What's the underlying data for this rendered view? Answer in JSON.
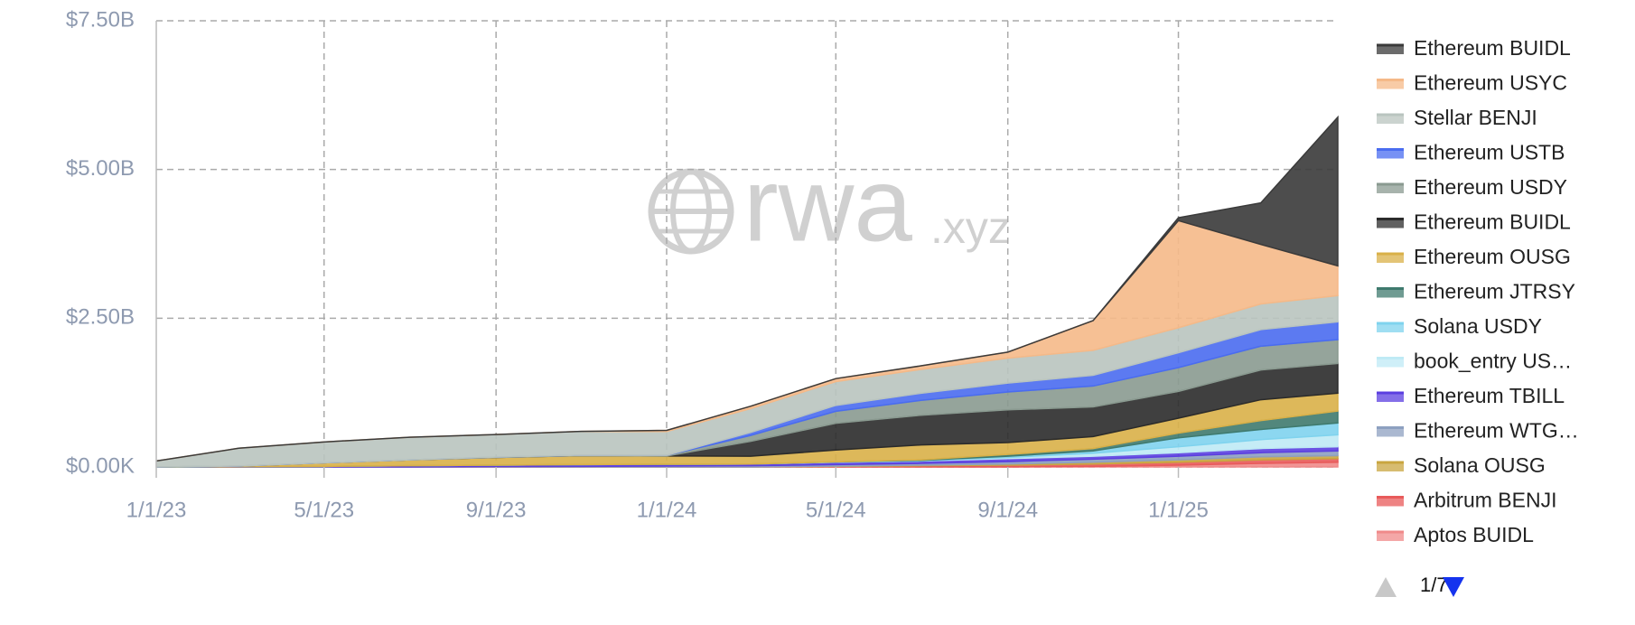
{
  "chart_data": {
    "type": "stacked-area",
    "watermark": {
      "main": "rwa",
      "suffix": ".xyz"
    },
    "x": [
      "2023-01-01",
      "2023-03-01",
      "2023-05-01",
      "2023-07-01",
      "2023-09-01",
      "2023-11-01",
      "2024-01-01",
      "2024-03-01",
      "2024-05-01",
      "2024-07-01",
      "2024-09-01",
      "2024-11-01",
      "2025-01-01",
      "2025-03-01",
      "2025-04-25"
    ],
    "xlim": [
      "2023-01-01",
      "2025-04-25"
    ],
    "xticks": [
      {
        "value": "2023-01-01",
        "label": "1/1/23"
      },
      {
        "value": "2023-05-01",
        "label": "5/1/23"
      },
      {
        "value": "2023-09-01",
        "label": "9/1/23"
      },
      {
        "value": "2024-01-01",
        "label": "1/1/24"
      },
      {
        "value": "2024-05-01",
        "label": "5/1/24"
      },
      {
        "value": "2024-09-01",
        "label": "9/1/24"
      },
      {
        "value": "2025-01-01",
        "label": "1/1/25"
      }
    ],
    "ylim": [
      0,
      7500000000.0
    ],
    "yticks": [
      {
        "value": 0,
        "label": "$0.00K"
      },
      {
        "value": 2500000000.0,
        "label": "$2.50B"
      },
      {
        "value": 5000000000.0,
        "label": "$5.00B"
      },
      {
        "value": 7500000000.0,
        "label": "$7.50B"
      }
    ],
    "grid": true,
    "legend_position": "right",
    "legend_page": "1/7",
    "series": [
      {
        "name": "Ethereum BUIDL",
        "color": "#3a3a3a",
        "values": [
          0,
          0,
          0,
          0,
          0,
          0,
          0,
          0,
          0,
          0,
          0,
          0,
          50000000.0,
          700000000.0,
          2500000000.0
        ]
      },
      {
        "name": "Ethereum USYC",
        "color": "#f5b988",
        "values": [
          0,
          0,
          0,
          0,
          0,
          0,
          20000000.0,
          40000000.0,
          50000000.0,
          60000000.0,
          100000000.0,
          500000000.0,
          1800000000.0,
          1000000000.0,
          500000000.0
        ]
      },
      {
        "name": "Stellar BENJI",
        "color": "#b9c4bf",
        "values": [
          100000000.0,
          300000000.0,
          350000000.0,
          380000000.0,
          380000000.0,
          400000000.0,
          400000000.0,
          400000000.0,
          400000000.0,
          400000000.0,
          420000000.0,
          420000000.0,
          420000000.0,
          430000000.0,
          440000000.0
        ]
      },
      {
        "name": "Ethereum USTB",
        "color": "#4a6cf0",
        "values": [
          0,
          0,
          0,
          0,
          0,
          0,
          0,
          50000000.0,
          100000000.0,
          120000000.0,
          150000000.0,
          180000000.0,
          250000000.0,
          280000000.0,
          300000000.0
        ]
      },
      {
        "name": "Ethereum USDY",
        "color": "#8a9a90",
        "values": [
          0,
          0,
          0,
          0,
          5000000.0,
          8000000.0,
          10000000.0,
          100000000.0,
          200000000.0,
          250000000.0,
          300000000.0,
          350000000.0,
          400000000.0,
          400000000.0,
          400000000.0
        ]
      },
      {
        "name": "Ethereum BUIDL",
        "color": "#2b2b2b",
        "values": [
          0,
          0,
          0,
          0,
          0,
          0,
          0,
          250000000.0,
          450000000.0,
          500000000.0,
          550000000.0,
          500000000.0,
          450000000.0,
          500000000.0,
          500000000.0
        ]
      },
      {
        "name": "Ethereum OUSG",
        "color": "#d9b048",
        "values": [
          0,
          10000000.0,
          60000000.0,
          100000000.0,
          130000000.0,
          150000000.0,
          140000000.0,
          130000000.0,
          200000000.0,
          250000000.0,
          200000000.0,
          200000000.0,
          250000000.0,
          350000000.0,
          300000000.0
        ]
      },
      {
        "name": "Ethereum JTRSY",
        "color": "#3f7a6e",
        "values": [
          0,
          0,
          0,
          0,
          0,
          0,
          0,
          0,
          0,
          10000000.0,
          30000000.0,
          40000000.0,
          80000000.0,
          150000000.0,
          200000000.0
        ]
      },
      {
        "name": "Solana USDY",
        "color": "#7fd3ee",
        "values": [
          0,
          0,
          0,
          0,
          0,
          0,
          0,
          0,
          5000000.0,
          10000000.0,
          20000000.0,
          40000000.0,
          150000000.0,
          170000000.0,
          200000000.0
        ]
      },
      {
        "name": "book_entry US…",
        "color": "#bfeaf5",
        "values": [
          0,
          0,
          0,
          0,
          0,
          0,
          0,
          0,
          0,
          0,
          20000000.0,
          50000000.0,
          100000000.0,
          150000000.0,
          200000000.0
        ]
      },
      {
        "name": "Ethereum TBILL",
        "color": "#5b3fe0",
        "values": [
          0,
          5000000.0,
          10000000.0,
          20000000.0,
          25000000.0,
          30000000.0,
          30000000.0,
          30000000.0,
          40000000.0,
          40000000.0,
          50000000.0,
          50000000.0,
          60000000.0,
          70000000.0,
          70000000.0
        ]
      },
      {
        "name": "Ethereum WTG…",
        "color": "#8da0c0",
        "values": [
          0,
          0,
          0,
          0,
          5000000.0,
          10000000.0,
          15000000.0,
          20000000.0,
          25000000.0,
          30000000.0,
          40000000.0,
          50000000.0,
          60000000.0,
          70000000.0,
          80000000.0
        ]
      },
      {
        "name": "Solana OUSG",
        "color": "#c9a640",
        "values": [
          0,
          0,
          0,
          0,
          0,
          0,
          0,
          0,
          5000000.0,
          10000000.0,
          20000000.0,
          30000000.0,
          40000000.0,
          50000000.0,
          50000000.0
        ]
      },
      {
        "name": "Arbitrum BENJI",
        "color": "#e85a5a",
        "values": [
          0,
          0,
          0,
          0,
          0,
          0,
          0,
          0,
          10000000.0,
          20000000.0,
          30000000.0,
          40000000.0,
          50000000.0,
          60000000.0,
          60000000.0
        ]
      },
      {
        "name": "Aptos BUIDL",
        "color": "#f08a8a",
        "values": [
          0,
          0,
          0,
          0,
          0,
          0,
          0,
          0,
          0,
          0,
          0,
          10000000.0,
          30000000.0,
          60000000.0,
          80000000.0
        ]
      }
    ]
  }
}
